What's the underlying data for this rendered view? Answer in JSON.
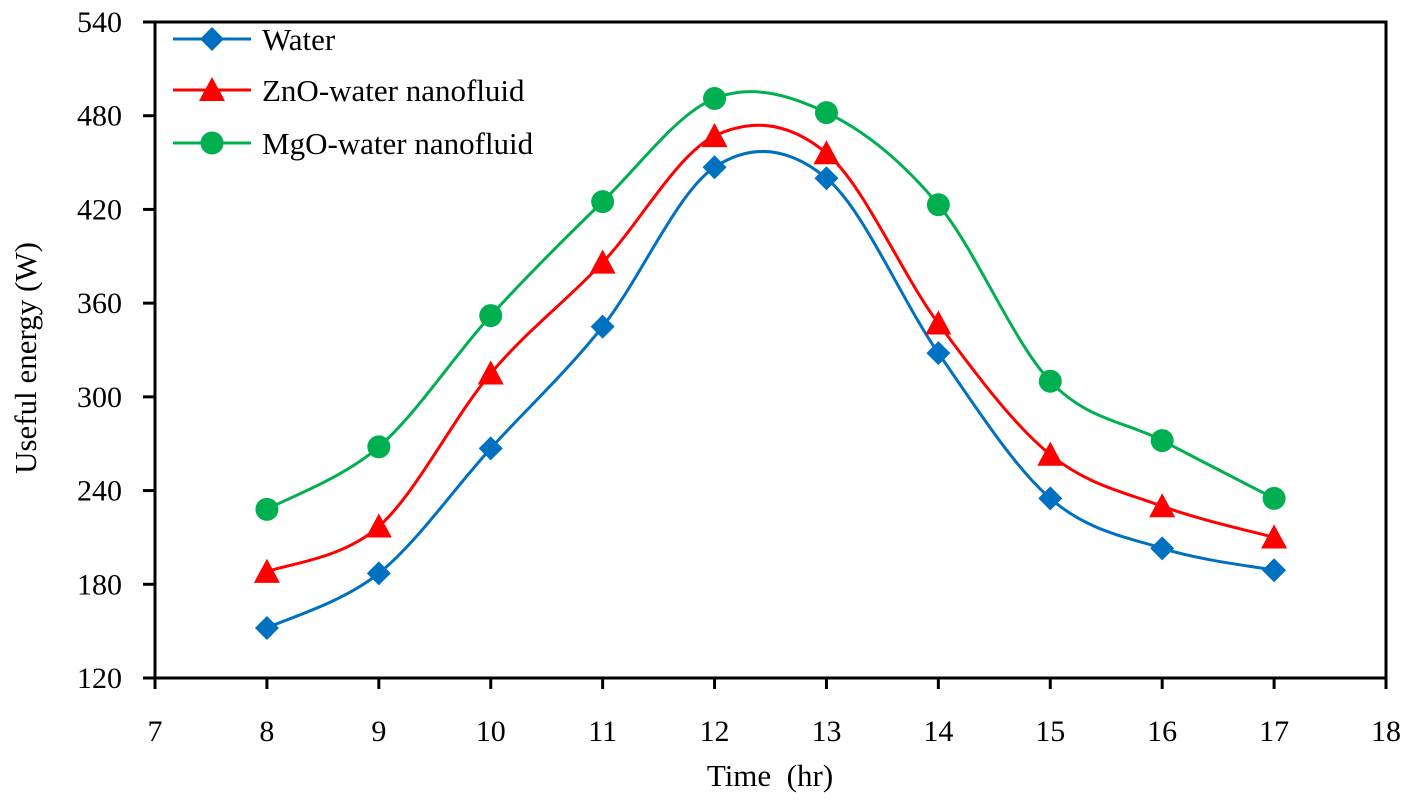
{
  "chart_data": {
    "type": "line",
    "title": "",
    "xlabel": "Time  (hr)",
    "ylabel": "Useful energy (W)",
    "xlim": [
      7,
      18
    ],
    "ylim": [
      120,
      540
    ],
    "xticks": [
      7,
      8,
      9,
      10,
      11,
      12,
      13,
      14,
      15,
      16,
      17,
      18
    ],
    "yticks": [
      120,
      180,
      240,
      300,
      360,
      420,
      480,
      540
    ],
    "grid": false,
    "legend_position": "top-left",
    "smooth": true,
    "x": [
      8,
      9,
      10,
      11,
      12,
      13,
      14,
      15,
      16,
      17
    ],
    "series": [
      {
        "name": "Water",
        "color": "#0070C0",
        "marker": "diamond",
        "values": [
          152,
          187,
          267,
          345,
          447,
          440,
          328,
          235,
          203,
          189
        ]
      },
      {
        "name": "ZnO-water nanofluid",
        "color": "#FF0000",
        "marker": "triangle",
        "values": [
          188,
          217,
          315,
          386,
          467,
          456,
          347,
          263,
          230,
          210
        ]
      },
      {
        "name": "MgO-water nanofluid",
        "color": "#00B050",
        "marker": "circle",
        "values": [
          228,
          268,
          352,
          425,
          491,
          482,
          423,
          310,
          272,
          235
        ]
      }
    ]
  }
}
